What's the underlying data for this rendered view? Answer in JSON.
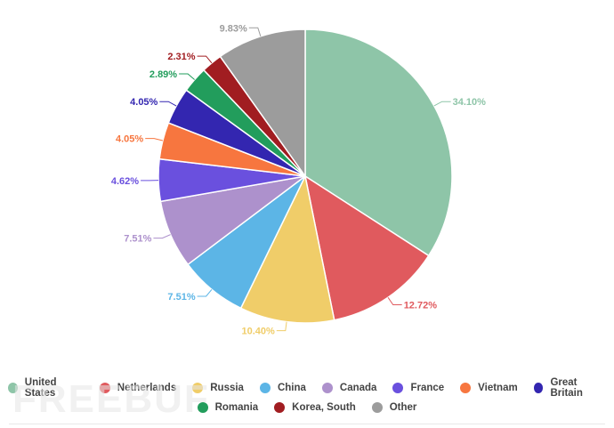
{
  "chart_data": {
    "type": "pie",
    "title": "",
    "slices": [
      {
        "label": "United States",
        "value": 34.1,
        "display": "34.10%",
        "color": "#8ec5a8"
      },
      {
        "label": "Netherlands",
        "value": 12.72,
        "display": "12.72%",
        "color": "#e05a5e"
      },
      {
        "label": "Russia",
        "value": 10.4,
        "display": "10.40%",
        "color": "#f0cd69"
      },
      {
        "label": "China",
        "value": 7.51,
        "display": "7.51%",
        "color": "#5cb5e6"
      },
      {
        "label": "Canada",
        "value": 7.51,
        "display": "7.51%",
        "color": "#ad91cc"
      },
      {
        "label": "France",
        "value": 4.62,
        "display": "4.62%",
        "color": "#6a50de"
      },
      {
        "label": "Vietnam",
        "value": 4.05,
        "display": "4.05%",
        "color": "#f7763f"
      },
      {
        "label": "Great Britain",
        "value": 4.05,
        "display": "4.05%",
        "color": "#3326b0"
      },
      {
        "label": "Romania",
        "value": 2.89,
        "display": "2.89%",
        "color": "#229d5c"
      },
      {
        "label": "Korea, South",
        "value": 2.31,
        "display": "2.31%",
        "color": "#a11d21"
      },
      {
        "label": "Other",
        "value": 9.83,
        "display": "9.83%",
        "color": "#9c9c9c"
      }
    ],
    "legend_position": "bottom"
  },
  "legend": {
    "row1": [
      {
        "label": "United States",
        "color": "#8ec5a8"
      },
      {
        "label": "Netherlands",
        "color": "#e05a5e"
      },
      {
        "label": "Russia",
        "color": "#f0cd69"
      },
      {
        "label": "China",
        "color": "#5cb5e6"
      },
      {
        "label": "Canada",
        "color": "#ad91cc"
      },
      {
        "label": "France",
        "color": "#6a50de"
      },
      {
        "label": "Vietnam",
        "color": "#f7763f"
      },
      {
        "label": "Great Britain",
        "color": "#3326b0"
      }
    ],
    "row2": [
      {
        "label": "Romania",
        "color": "#229d5c"
      },
      {
        "label": "Korea, South",
        "color": "#a11d21"
      },
      {
        "label": "Other",
        "color": "#9c9c9c"
      }
    ]
  },
  "watermark": "FREEBUF"
}
